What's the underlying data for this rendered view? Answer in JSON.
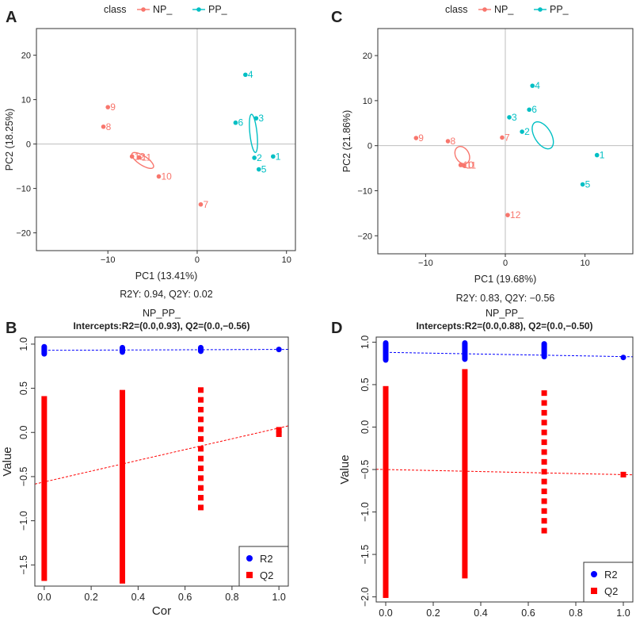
{
  "colors": {
    "np": "#F8766D",
    "pp": "#00BFC4",
    "r2": "#0000FF",
    "q2": "#FF0000",
    "axis": "#333333",
    "grid_ref": "#BEBEBE"
  },
  "chart_data": [
    {
      "panel": "A",
      "type": "scatter",
      "title": "",
      "legend_title": "class",
      "legend_labels": [
        "NP_",
        "PP_"
      ],
      "xlabel": "PC1 (13.41%)",
      "ylabel": "PC2 (18.25%)",
      "subtitle": "R2Y: 0.94, Q2Y: 0.02",
      "xlim": [
        -18,
        11
      ],
      "ylim": [
        -24,
        26
      ],
      "xticks": [
        -10,
        0,
        10
      ],
      "yticks": [
        -20,
        -10,
        0,
        10,
        20
      ],
      "xtick_labels": [
        "−10",
        "0",
        "10"
      ],
      "ytick_labels": [
        "−20",
        "−10",
        "0",
        "10",
        "20"
      ],
      "series": [
        {
          "name": "NP_",
          "points": [
            {
              "label": "9",
              "x": -10,
              "y": 8.3
            },
            {
              "label": "8",
              "x": -10.5,
              "y": 3.9
            },
            {
              "label": "12",
              "x": -7.3,
              "y": -2.8
            },
            {
              "label": "11",
              "x": -6.5,
              "y": -3.0
            },
            {
              "label": "10",
              "x": -4.3,
              "y": -7.3
            },
            {
              "label": "7",
              "x": 0.4,
              "y": -13.6
            }
          ],
          "ellipse": {
            "cx": -6.1,
            "cy": -3.7,
            "rx": 16.0,
            "ry": 5.8,
            "angle": -33
          }
        },
        {
          "name": "PP_",
          "points": [
            {
              "label": "4",
              "x": 5.4,
              "y": 15.6
            },
            {
              "label": "6",
              "x": 4.3,
              "y": 4.8
            },
            {
              "label": "3",
              "x": 6.6,
              "y": 5.8
            },
            {
              "label": "2",
              "x": 6.4,
              "y": -3.1
            },
            {
              "label": "1",
              "x": 8.5,
              "y": -2.8
            },
            {
              "label": "5",
              "x": 6.9,
              "y": -5.7
            }
          ],
          "ellipse": {
            "cx": 6.3,
            "cy": 2.4,
            "rx": 24.2,
            "ry": 4.5,
            "angle": -84
          }
        }
      ]
    },
    {
      "panel": "C",
      "type": "scatter",
      "title": "",
      "legend_title": "class",
      "legend_labels": [
        "NP_",
        "PP_"
      ],
      "xlabel": "PC1 (19.68%)",
      "ylabel": "PC2 (21.86%)",
      "subtitle": "R2Y: 0.83, Q2Y: −0.56",
      "xlim": [
        -16,
        16
      ],
      "ylim": [
        -24,
        26
      ],
      "xticks": [
        -10,
        0,
        10
      ],
      "yticks": [
        -20,
        -10,
        0,
        10,
        20
      ],
      "xtick_labels": [
        "−10",
        "0",
        "10"
      ],
      "ytick_labels": [
        "−20",
        "−10",
        "0",
        "10",
        "20"
      ],
      "series": [
        {
          "name": "NP_",
          "points": [
            {
              "label": "9",
              "x": -11.2,
              "y": 1.7
            },
            {
              "label": "8",
              "x": -7.2,
              "y": 1.0
            },
            {
              "label": "7",
              "x": -0.4,
              "y": 1.8
            },
            {
              "label": "10",
              "x": -5.6,
              "y": -4.3
            },
            {
              "label": "11",
              "x": -5.2,
              "y": -4.4
            },
            {
              "label": "12",
              "x": 0.3,
              "y": -15.4
            }
          ],
          "ellipse": {
            "cx": -5.4,
            "cy": -2.1,
            "rx": 11.6,
            "ry": 8.4,
            "angle": -60
          }
        },
        {
          "name": "PP_",
          "points": [
            {
              "label": "4",
              "x": 3.4,
              "y": 13.3
            },
            {
              "label": "6",
              "x": 3.0,
              "y": 8.0
            },
            {
              "label": "3",
              "x": 0.5,
              "y": 6.3
            },
            {
              "label": "2",
              "x": 2.1,
              "y": 3.1
            },
            {
              "label": "1",
              "x": 11.5,
              "y": -2.1
            },
            {
              "label": "5",
              "x": 9.7,
              "y": -8.6
            }
          ],
          "ellipse": {
            "cx": 4.7,
            "cy": 2.3,
            "rx": 19.0,
            "ry": 10.4,
            "angle": -58
          }
        }
      ]
    },
    {
      "panel": "B",
      "type": "scatter",
      "title": "NP_PP_",
      "subtitle": "Intercepts:R2=(0.0,0.93), Q2=(0.0,−0.56)",
      "xlabel": "Cor",
      "ylabel": "Value",
      "xlim": [
        -0.04,
        1.04
      ],
      "ylim": [
        -1.74,
        1.08
      ],
      "xticks": [
        0.0,
        0.2,
        0.4,
        0.6,
        0.8,
        1.0
      ],
      "yticks": [
        -1.5,
        -1.0,
        -0.5,
        0.0,
        0.5,
        1.0
      ],
      "xtick_labels": [
        "0.0",
        "0.2",
        "0.4",
        "0.6",
        "0.8",
        "1.0"
      ],
      "ytick_labels": [
        "−1.5",
        "−1.0",
        "−0.5",
        "0.0",
        "0.5",
        "1.0"
      ],
      "legend": [
        "R2",
        "Q2"
      ],
      "r2": {
        "x": [
          0,
          0.333,
          0.667,
          1.0
        ],
        "min": [
          0.89,
          0.91,
          0.92,
          0.94
        ],
        "max": [
          0.97,
          0.96,
          0.96,
          0.94
        ]
      },
      "q2": {
        "x": [
          0,
          0.333,
          0.667,
          1.0
        ],
        "min": [
          -1.65,
          -1.68,
          -0.85,
          -0.02
        ],
        "max": [
          0.38,
          0.45,
          0.48,
          0.03
        ]
      },
      "r2_line": [
        0.93,
        0.94
      ],
      "q2_line": [
        -0.56,
        0.05
      ]
    },
    {
      "panel": "D",
      "type": "scatter",
      "title": "NP_PP_",
      "subtitle": "Intercepts:R2=(0.0,0.88), Q2=(0.0,−0.50)",
      "xlabel": "Cor",
      "ylabel": "Value",
      "xlim": [
        -0.04,
        1.04
      ],
      "ylim": [
        -2.06,
        1.06
      ],
      "xticks": [
        0.0,
        0.2,
        0.4,
        0.6,
        0.8,
        1.0
      ],
      "yticks": [
        -2.0,
        -1.5,
        -1.0,
        -0.5,
        0.0,
        0.5,
        1.0
      ],
      "xtick_labels": [
        "0.0",
        "0.2",
        "0.4",
        "0.6",
        "0.8",
        "1.0"
      ],
      "ytick_labels": [
        "−2.0",
        "−1.5",
        "−1.0",
        "−0.5",
        "0.0",
        "0.5",
        "1.0"
      ],
      "legend": [
        "R2",
        "Q2"
      ],
      "r2": {
        "x": [
          0,
          0.333,
          0.667,
          1.0
        ],
        "min": [
          0.79,
          0.8,
          0.83,
          0.82
        ],
        "max": [
          0.99,
          0.99,
          0.98,
          0.82
        ]
      },
      "q2": {
        "x": [
          0,
          0.333,
          0.667,
          1.0
        ],
        "min": [
          -1.98,
          -1.75,
          -1.22,
          -0.56
        ],
        "max": [
          0.45,
          0.65,
          0.4,
          -0.56
        ]
      },
      "r2_line": [
        0.88,
        0.83
      ],
      "q2_line": [
        -0.5,
        -0.56
      ]
    }
  ]
}
